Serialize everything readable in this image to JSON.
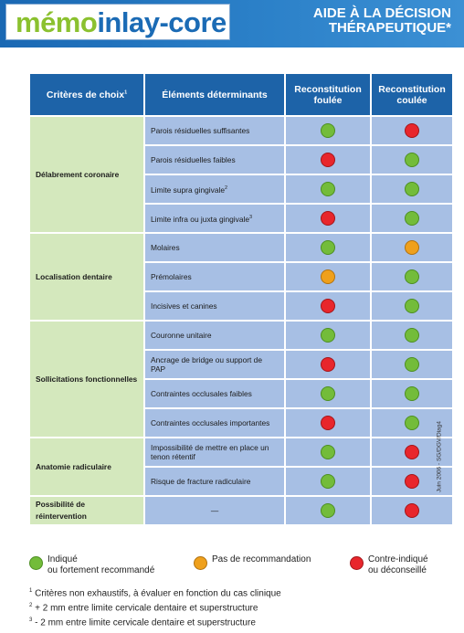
{
  "header": {
    "logo_memo": "mémo",
    "logo_rest": "inlay-core",
    "title_line1": "AIDE À LA DÉCISION",
    "title_line2": "THÉRAPEUTIQUE*"
  },
  "table": {
    "headers": {
      "criteria": "Critères de choix",
      "criteria_sup": "1",
      "elements": "Éléments déterminants",
      "col1": "Reconstitution foulée",
      "col2": "Reconstitution coulée"
    },
    "groups": [
      {
        "label": "Délabrement coronaire",
        "rows": [
          {
            "text": "Parois résiduelles suffisantes",
            "sup": "",
            "foulee": "green",
            "coulee": "red"
          },
          {
            "text": "Parois résiduelles faibles",
            "sup": "",
            "foulee": "red",
            "coulee": "green"
          },
          {
            "text": "Limite supra gingivale",
            "sup": "2",
            "foulee": "green",
            "coulee": "green"
          },
          {
            "text": "Limite infra ou juxta gingivale",
            "sup": "3",
            "foulee": "red",
            "coulee": "green"
          }
        ]
      },
      {
        "label": "Localisation dentaire",
        "rows": [
          {
            "text": "Molaires",
            "sup": "",
            "foulee": "green",
            "coulee": "orange"
          },
          {
            "text": "Prémolaires",
            "sup": "",
            "foulee": "orange",
            "coulee": "green"
          },
          {
            "text": "Incisives et canines",
            "sup": "",
            "foulee": "red",
            "coulee": "green"
          }
        ]
      },
      {
        "label": "Sollicitations fonctionnelles",
        "rows": [
          {
            "text": "Couronne unitaire",
            "sup": "",
            "foulee": "green",
            "coulee": "green"
          },
          {
            "text": "Ancrage de bridge ou support de PAP",
            "sup": "",
            "foulee": "red",
            "coulee": "green"
          },
          {
            "text": "Contraintes occlusales faibles",
            "sup": "",
            "foulee": "green",
            "coulee": "green"
          },
          {
            "text": "Contraintes occlusales importantes",
            "sup": "",
            "foulee": "red",
            "coulee": "green"
          }
        ]
      },
      {
        "label": "Anatomie radiculaire",
        "rows": [
          {
            "text": "Impossibilité de mettre en place un tenon rétentif",
            "sup": "",
            "foulee": "green",
            "coulee": "red"
          },
          {
            "text": "Risque de fracture radiculaire",
            "sup": "",
            "foulee": "green",
            "coulee": "red"
          }
        ]
      },
      {
        "label": "Possibilité de réintervention",
        "rows": [
          {
            "text": "—",
            "sup": "",
            "foulee": "green",
            "coulee": "red"
          }
        ]
      }
    ]
  },
  "side_note": "Juin 2006 - SG/DGV/Diag4",
  "legend": {
    "green": {
      "line1": "Indiqué",
      "line2": "ou fortement recommandé"
    },
    "orange": {
      "line1": "Pas de recommandation",
      "line2": ""
    },
    "red": {
      "line1": "Contre-indiqué",
      "line2": "ou déconseillé"
    }
  },
  "notes": [
    {
      "sup": "1",
      "text": "Critères non exhaustifs, à évaluer en fonction du cas clinique"
    },
    {
      "sup": "2",
      "text": "+ 2 mm entre limite cervicale dentaire et superstructure"
    },
    {
      "sup": "3",
      "text": "- 2 mm entre limite cervicale dentaire et superstructure"
    }
  ],
  "colors": {
    "green": "#73bc3a",
    "orange": "#efa01c",
    "red": "#e8262c",
    "header_blue": "#1d63a8",
    "row_blue": "#a7bfe4",
    "criteria_green": "#d4e8bd"
  }
}
